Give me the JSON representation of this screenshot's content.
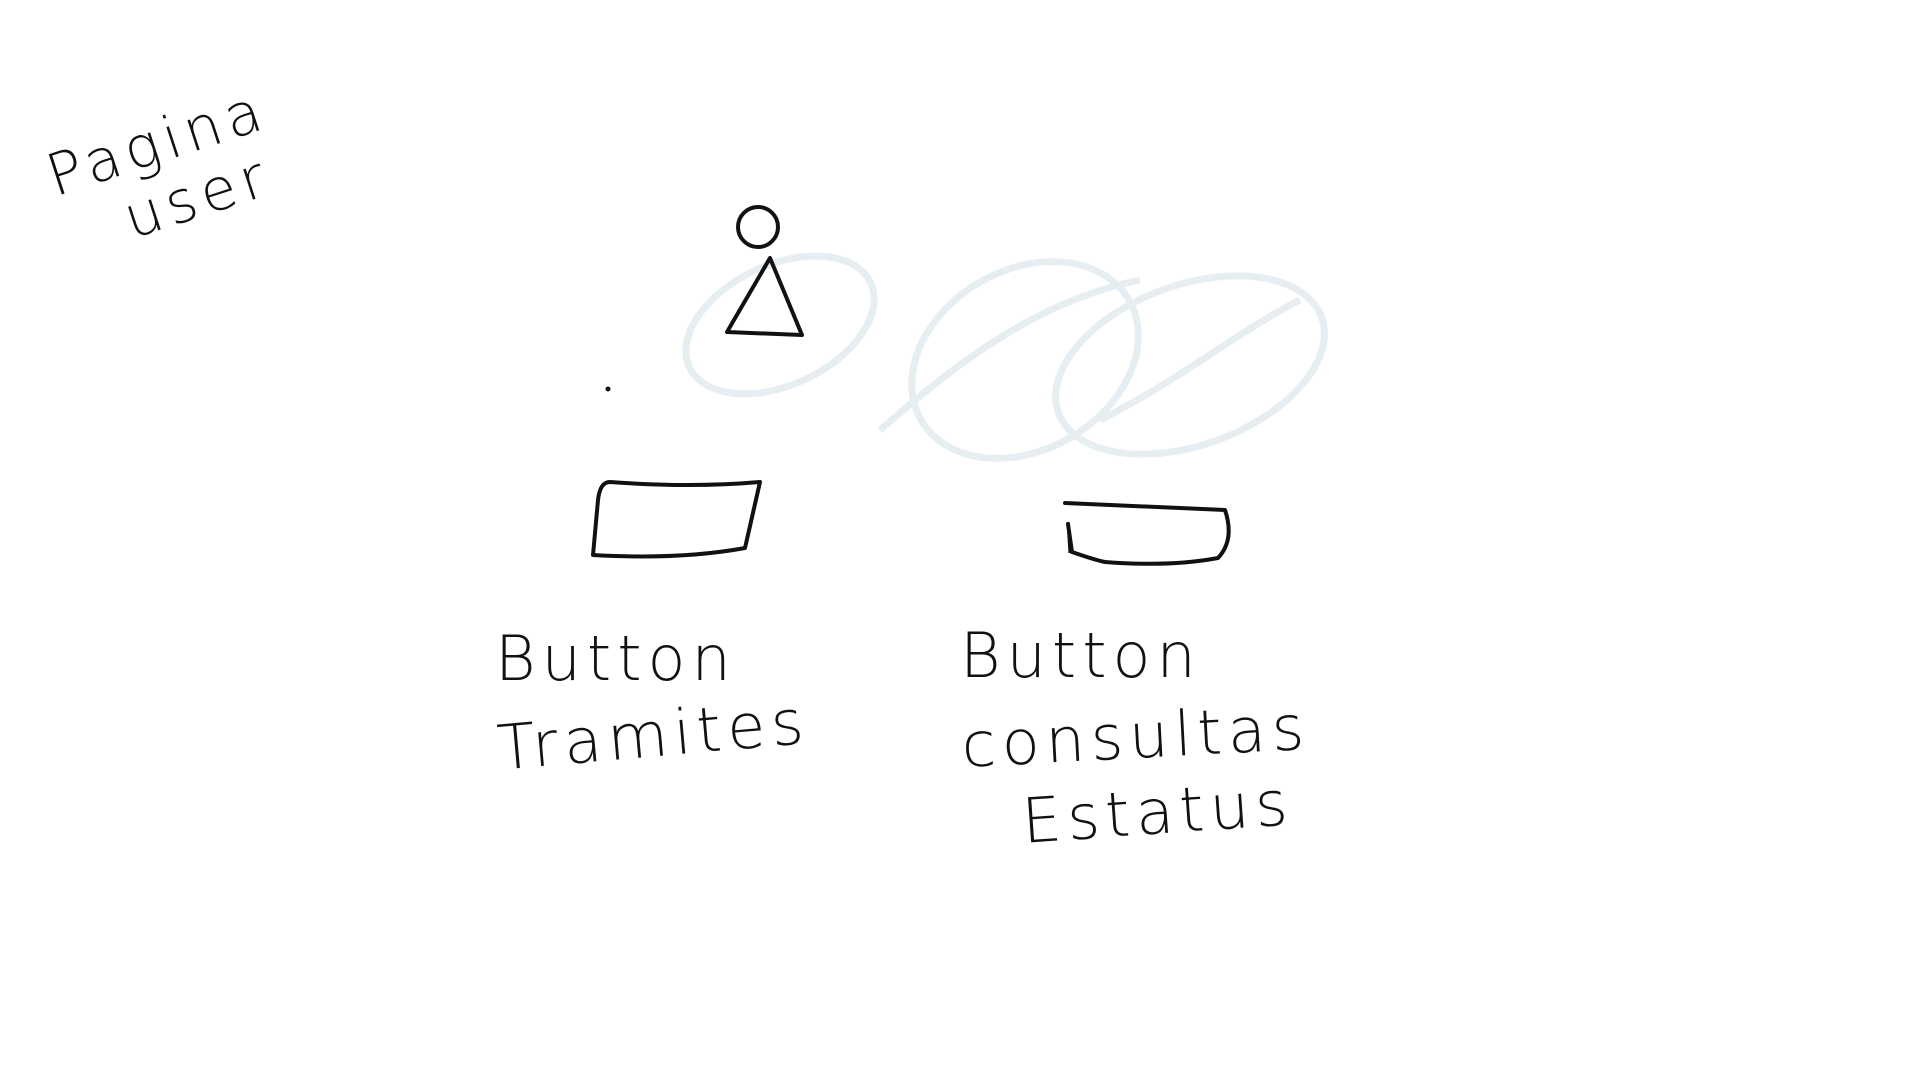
{
  "page": {
    "title_line1": "Pagina",
    "title_line2": "user"
  },
  "user_icon": "user-avatar-icon",
  "buttons": [
    {
      "line1": "Button",
      "line2": "Tramites"
    },
    {
      "line1": "Button",
      "line2": "consultas",
      "line3": "Estatus"
    }
  ],
  "colors": {
    "ink": "#111111",
    "faint_scribble": "#e6eef2",
    "background": "#ffffff"
  }
}
